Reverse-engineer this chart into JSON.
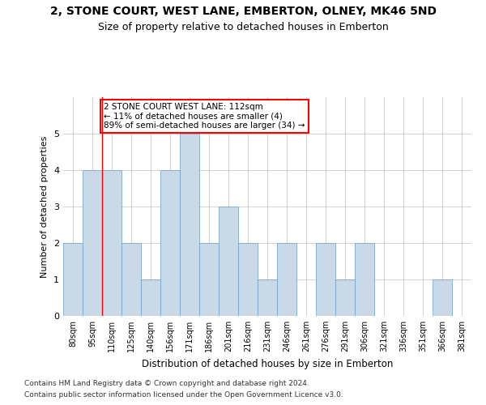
{
  "title": "2, STONE COURT, WEST LANE, EMBERTON, OLNEY, MK46 5ND",
  "subtitle": "Size of property relative to detached houses in Emberton",
  "xlabel": "Distribution of detached houses by size in Emberton",
  "ylabel": "Number of detached properties",
  "categories": [
    "80sqm",
    "95sqm",
    "110sqm",
    "125sqm",
    "140sqm",
    "156sqm",
    "171sqm",
    "186sqm",
    "201sqm",
    "216sqm",
    "231sqm",
    "246sqm",
    "261sqm",
    "276sqm",
    "291sqm",
    "306sqm",
    "321sqm",
    "336sqm",
    "351sqm",
    "366sqm",
    "381sqm"
  ],
  "values": [
    2,
    4,
    4,
    2,
    1,
    4,
    5,
    2,
    3,
    2,
    1,
    2,
    0,
    2,
    1,
    2,
    0,
    0,
    0,
    1,
    0
  ],
  "bar_color": "#c9d9e8",
  "bar_edge_color": "#6b9ec7",
  "redline_x": 1.5,
  "annotation_text": "2 STONE COURT WEST LANE: 112sqm\n← 11% of detached houses are smaller (4)\n89% of semi-detached houses are larger (34) →",
  "ylim": [
    0,
    6
  ],
  "yticks": [
    0,
    1,
    2,
    3,
    4,
    5,
    6
  ],
  "footer_line1": "Contains HM Land Registry data © Crown copyright and database right 2024.",
  "footer_line2": "Contains public sector information licensed under the Open Government Licence v3.0."
}
